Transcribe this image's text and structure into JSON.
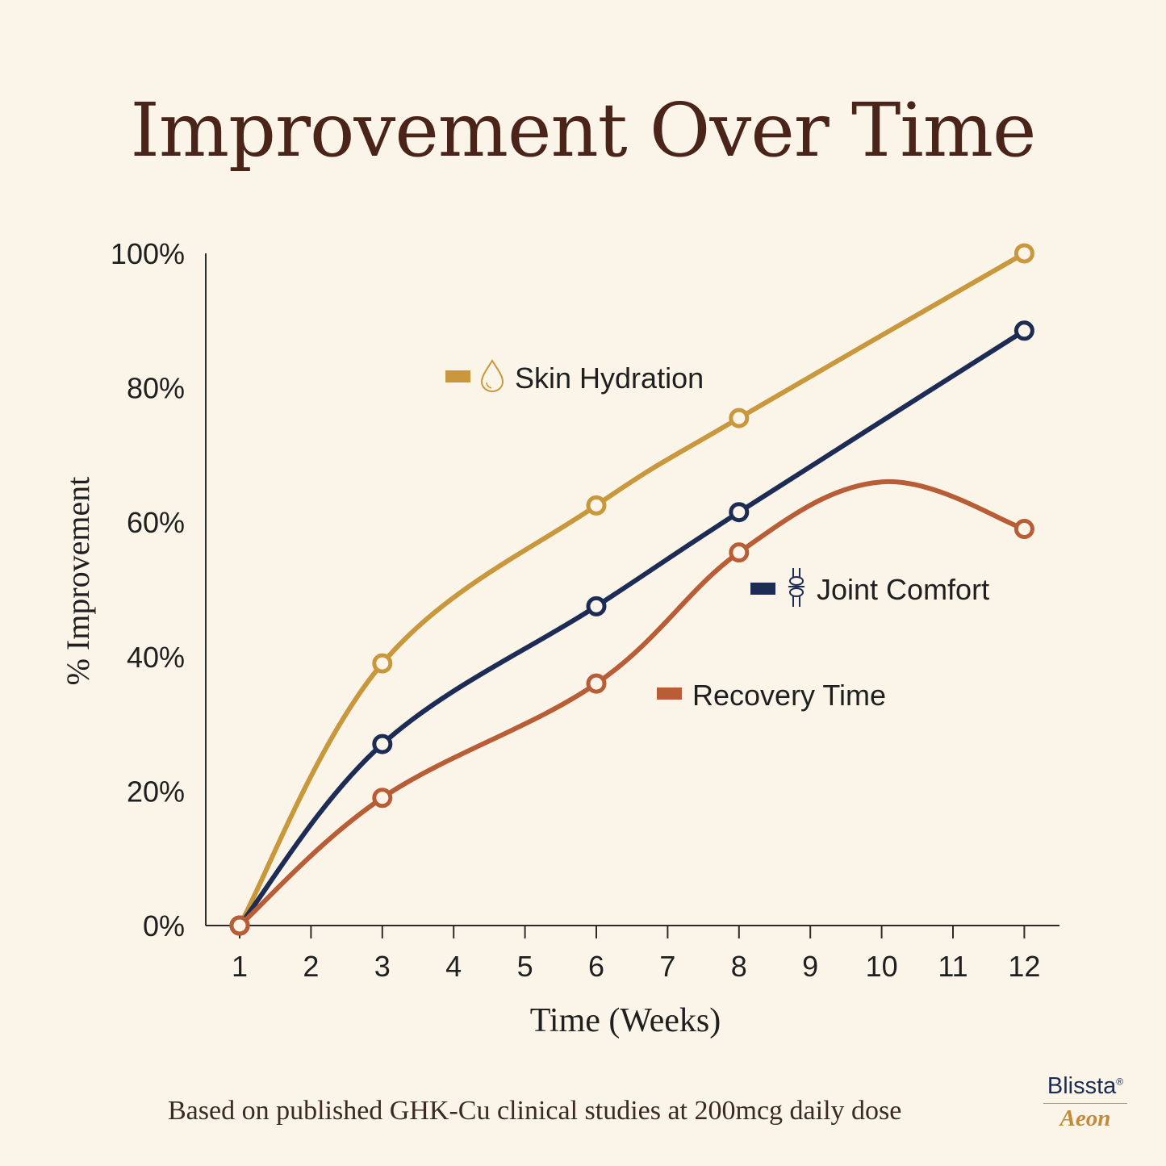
{
  "colors": {
    "background": "#faf5e8",
    "title": "#4a2418",
    "axis": "#2b2b2b",
    "text": "#1f1f1f",
    "skin": "#c9973c",
    "joint": "#1d2c55",
    "recovery": "#b85d36"
  },
  "chart_data": {
    "type": "line",
    "title": "Improvement Over Time",
    "xlabel": "Time (Weeks)",
    "ylabel": "% Improvement",
    "x_ticks": [
      1,
      2,
      3,
      4,
      5,
      6,
      7,
      8,
      9,
      10,
      11,
      12
    ],
    "y_ticks": [
      0,
      20,
      40,
      60,
      80,
      100
    ],
    "y_tick_labels": [
      "0%",
      "20%",
      "40%",
      "60%",
      "80%",
      "100%"
    ],
    "xlim": [
      0.5,
      12.5
    ],
    "ylim": [
      0,
      100
    ],
    "grid": false,
    "series": [
      {
        "name": "Skin Hydration",
        "key": "skin",
        "icon": "water-drop-icon",
        "color": "#c9973c",
        "x": [
          1,
          3,
          6,
          8,
          12
        ],
        "values": [
          0,
          39,
          62.5,
          75.5,
          100
        ]
      },
      {
        "name": "Joint Comfort",
        "key": "joint",
        "icon": "joint-icon",
        "color": "#1d2c55",
        "x": [
          1,
          3,
          6,
          8,
          12
        ],
        "values": [
          0,
          27,
          47.5,
          61.5,
          88.5
        ]
      },
      {
        "name": "Recovery Time",
        "key": "recovery",
        "icon": "",
        "color": "#b85d36",
        "x": [
          1,
          3,
          6,
          8,
          10,
          12
        ],
        "values": [
          0,
          19,
          36,
          55.5,
          66,
          59
        ]
      }
    ]
  },
  "footnote": "Based on published GHK-Cu clinical studies at 200mcg daily dose",
  "brand": {
    "name": "Blissta",
    "mark": "®",
    "sub": "Aeon"
  }
}
